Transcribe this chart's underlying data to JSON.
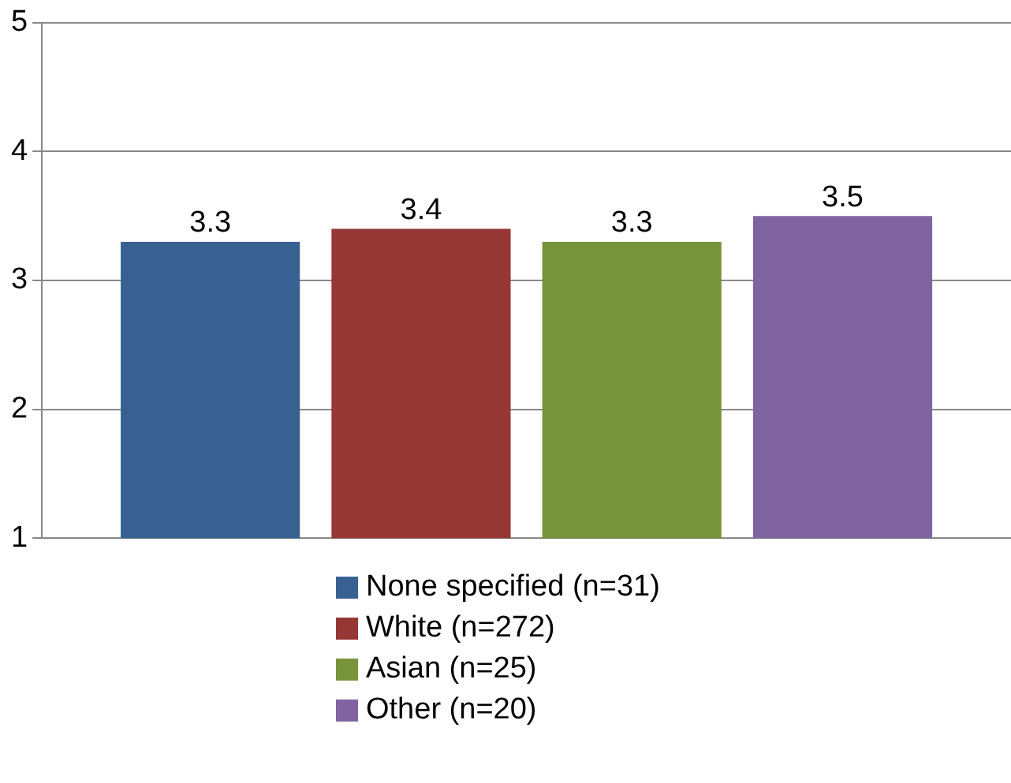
{
  "chart_data": {
    "type": "bar",
    "categories": [
      null
    ],
    "series": [
      {
        "name": "None specified (n=31)",
        "color": "#386192",
        "values": [
          3.3
        ]
      },
      {
        "name": "White (n=272)",
        "color": "#953735",
        "values": [
          3.4
        ]
      },
      {
        "name": "Asian (n=25)",
        "color": "#77933c",
        "values": [
          3.3
        ]
      },
      {
        "name": "Other (n=20)",
        "color": "#8064a2",
        "values": [
          3.5
        ]
      }
    ],
    "ylim": [
      1,
      5
    ],
    "yticks": [
      1,
      2,
      3,
      4,
      5
    ],
    "grid": "y",
    "legend": "bottom",
    "data_labels": true
  }
}
